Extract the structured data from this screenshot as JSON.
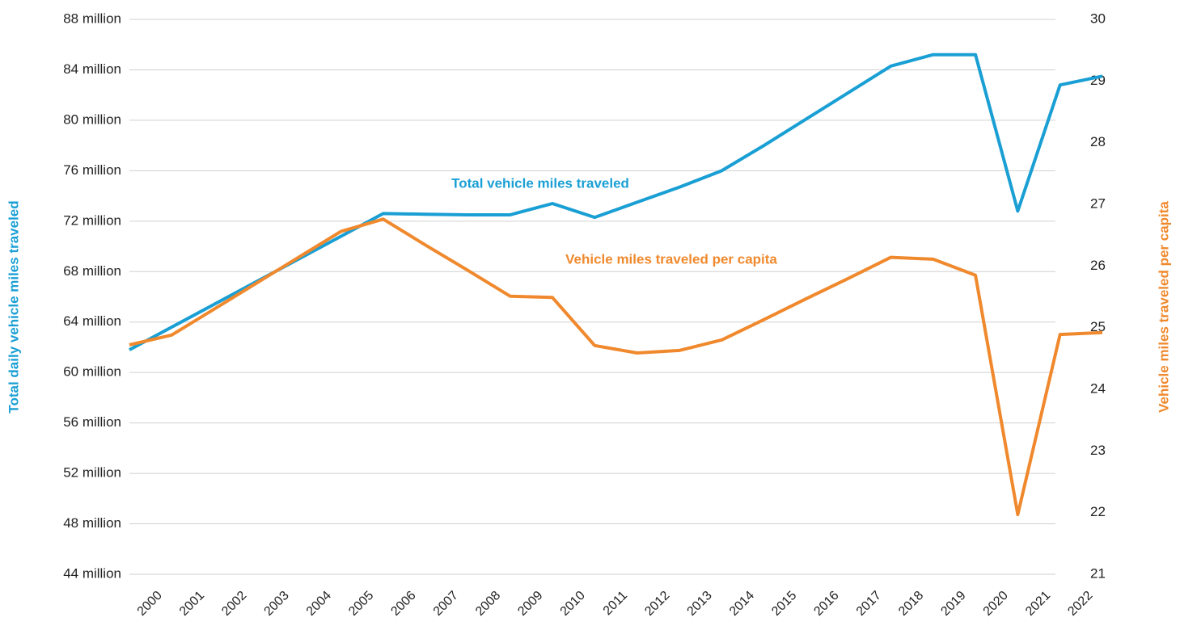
{
  "chart_data": {
    "type": "line",
    "ylabel": "Total daily vehicle miles traveled",
    "y2label": "Vehicle miles traveled per capita",
    "annotations": [
      "Total vehicle miles traveled",
      "Vehicle miles traveled per capita"
    ],
    "categories": [
      "2000",
      "2001",
      "2002",
      "2003",
      "2004",
      "2005",
      "2006",
      "2007",
      "2008",
      "2009",
      "2010",
      "2011",
      "2012",
      "2013",
      "2014",
      "2015",
      "2016",
      "2017",
      "2018",
      "2019",
      "2020",
      "2021",
      "2022",
      null
    ],
    "series": [
      {
        "name": "Total vehicle miles traveled",
        "color": "#1a9fd4",
        "axis": "y",
        "values": [
          61800000,
          63600000,
          65400000,
          67200000,
          69000000,
          70800000,
          72600000,
          72550000,
          72500000,
          72500000,
          73400000,
          72300000,
          73500000,
          74700000,
          76000000,
          78000000,
          80100000,
          82200000,
          84300000,
          85200000,
          85200000,
          72800000,
          82800000,
          83500000
        ]
      },
      {
        "name": "Vehicle miles traveled per capita",
        "color": "#f0892d",
        "axis": "y2",
        "values": [
          24.72,
          24.88,
          25.3,
          25.72,
          26.14,
          26.56,
          26.76,
          26.34,
          25.93,
          25.51,
          25.49,
          24.71,
          24.59,
          24.63,
          24.8,
          25.13,
          25.47,
          25.8,
          26.14,
          26.11,
          25.85,
          21.97,
          24.89,
          24.92
        ]
      }
    ],
    "ylim": [
      44000000,
      88000000
    ],
    "yticks": [
      {
        "value": 44000000,
        "label": "44 million"
      },
      {
        "value": 48000000,
        "label": "48 million"
      },
      {
        "value": 52000000,
        "label": "52 million"
      },
      {
        "value": 56000000,
        "label": "56 million"
      },
      {
        "value": 60000000,
        "label": "60 million"
      },
      {
        "value": 64000000,
        "label": "64 million"
      },
      {
        "value": 68000000,
        "label": "68 million"
      },
      {
        "value": 72000000,
        "label": "72 million"
      },
      {
        "value": 76000000,
        "label": "76 million"
      },
      {
        "value": 80000000,
        "label": "80 million"
      },
      {
        "value": 84000000,
        "label": "84 million"
      },
      {
        "value": 88000000,
        "label": "88 million"
      }
    ],
    "y2lim": [
      21,
      30
    ],
    "y2ticks": [
      21,
      22,
      23,
      24,
      25,
      26,
      27,
      28,
      29,
      30
    ],
    "grid": true
  }
}
